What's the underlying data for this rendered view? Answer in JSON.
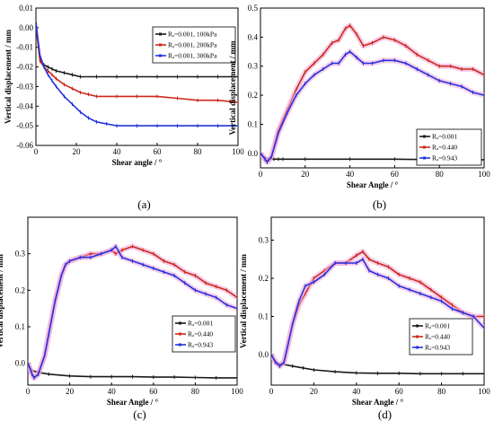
{
  "colors": {
    "black": "#1a1a1a",
    "red": "#cc2a1a",
    "blue": "#2233dd",
    "pink_band": "#f2a6d8"
  },
  "chart_data": [
    {
      "panel": "(a)",
      "type": "line",
      "xlabel": "Shear angle / °",
      "ylabel": "Vertical displacement / mm",
      "xlim": [
        0,
        100
      ],
      "ylim": [
        -0.06,
        0.01
      ],
      "xticks": [
        "0",
        "20",
        "40",
        "60",
        "80",
        "100"
      ],
      "yticks": [
        "0.01",
        "0.00",
        "-0.01",
        "-0.02",
        "-0.03",
        "-0.04",
        "-0.05",
        "-0.06"
      ],
      "legend": "top-right",
      "series": [
        {
          "name": "Rₐ=0.001, 100kPa",
          "color": "black",
          "x": [
            0,
            2,
            4,
            6,
            8,
            10,
            14,
            18,
            22,
            30,
            40,
            50,
            60,
            70,
            80,
            90,
            100
          ],
          "y": [
            0.003,
            -0.016,
            -0.019,
            -0.02,
            -0.021,
            -0.022,
            -0.023,
            -0.024,
            -0.025,
            -0.025,
            -0.025,
            -0.025,
            -0.025,
            -0.025,
            -0.025,
            -0.025,
            -0.025
          ]
        },
        {
          "name": "Rₐ=0.001, 200kPa",
          "color": "red",
          "x": [
            0,
            2,
            4,
            6,
            8,
            10,
            14,
            18,
            22,
            26,
            30,
            40,
            50,
            60,
            70,
            80,
            90,
            100
          ],
          "y": [
            0.001,
            -0.017,
            -0.02,
            -0.022,
            -0.024,
            -0.026,
            -0.029,
            -0.031,
            -0.033,
            -0.034,
            -0.035,
            -0.035,
            -0.035,
            -0.035,
            -0.036,
            -0.037,
            -0.037,
            -0.038
          ]
        },
        {
          "name": "Rₐ=0.001, 300kPa",
          "color": "blue",
          "x": [
            0,
            2,
            4,
            6,
            8,
            10,
            14,
            18,
            22,
            26,
            30,
            35,
            40,
            50,
            60,
            70,
            80,
            90,
            100
          ],
          "y": [
            0.002,
            -0.014,
            -0.02,
            -0.024,
            -0.027,
            -0.03,
            -0.035,
            -0.039,
            -0.043,
            -0.046,
            -0.048,
            -0.049,
            -0.05,
            -0.05,
            -0.05,
            -0.05,
            -0.05,
            -0.05,
            -0.05
          ]
        }
      ]
    },
    {
      "panel": "(b)",
      "type": "line",
      "xlabel": "Shear Angle / °",
      "ylabel": "Vertical displacement / mm",
      "xlim": [
        0,
        100
      ],
      "ylim": [
        -0.05,
        0.5
      ],
      "xticks": [
        "0",
        "20",
        "40",
        "60",
        "80",
        "100"
      ],
      "yticks": [
        "0.0",
        "0.1",
        "0.2",
        "0.3",
        "0.4",
        "0.5"
      ],
      "legend": "bottom-right",
      "series": [
        {
          "name": "Rₐ=0.001",
          "color": "black",
          "x": [
            0,
            2,
            4,
            6,
            8,
            10,
            20,
            40,
            60,
            80,
            100
          ],
          "y": [
            0,
            -0.015,
            -0.02,
            -0.02,
            -0.02,
            -0.02,
            -0.02,
            -0.02,
            -0.02,
            -0.022,
            -0.022
          ]
        },
        {
          "name": "Rₐ=0.440",
          "color": "red",
          "x": [
            0,
            2,
            3,
            5,
            8,
            12,
            16,
            20,
            24,
            28,
            32,
            35,
            38,
            40,
            43,
            46,
            50,
            55,
            60,
            65,
            70,
            75,
            80,
            85,
            90,
            95,
            100
          ],
          "y": [
            0,
            -0.02,
            -0.03,
            -0.01,
            0.08,
            0.15,
            0.22,
            0.28,
            0.31,
            0.34,
            0.38,
            0.39,
            0.43,
            0.44,
            0.41,
            0.37,
            0.38,
            0.4,
            0.39,
            0.37,
            0.34,
            0.32,
            0.3,
            0.3,
            0.29,
            0.29,
            0.27
          ]
        },
        {
          "name": "Rₐ=0.943",
          "color": "blue",
          "x": [
            0,
            2,
            3,
            5,
            8,
            12,
            16,
            20,
            24,
            28,
            32,
            35,
            38,
            40,
            43,
            46,
            50,
            55,
            60,
            65,
            70,
            75,
            80,
            85,
            90,
            95,
            100
          ],
          "y": [
            0,
            -0.02,
            -0.03,
            -0.01,
            0.07,
            0.14,
            0.2,
            0.24,
            0.27,
            0.29,
            0.31,
            0.31,
            0.34,
            0.35,
            0.33,
            0.31,
            0.31,
            0.32,
            0.32,
            0.31,
            0.29,
            0.27,
            0.25,
            0.24,
            0.23,
            0.21,
            0.2
          ]
        }
      ]
    },
    {
      "panel": "(c)",
      "type": "line",
      "xlabel": "Shear Angle / °",
      "ylabel": "Vertical displacement / mm",
      "xlim": [
        0,
        100
      ],
      "ylim": [
        -0.06,
        0.4
      ],
      "xticks": [
        "0",
        "20",
        "40",
        "60",
        "80",
        "100"
      ],
      "yticks": [
        "0.0",
        "0.1",
        "0.2",
        "0.3"
      ],
      "legend": "bottom-right",
      "series": [
        {
          "name": "Rₐ=0.001",
          "color": "black",
          "x": [
            0,
            2,
            5,
            10,
            20,
            30,
            40,
            50,
            60,
            70,
            80,
            90,
            100
          ],
          "y": [
            0,
            -0.02,
            -0.025,
            -0.03,
            -0.035,
            -0.037,
            -0.037,
            -0.037,
            -0.038,
            -0.038,
            -0.039,
            -0.04,
            -0.04
          ]
        },
        {
          "name": "Rₐ=0.440",
          "color": "red",
          "x": [
            0,
            2,
            3,
            5,
            8,
            10,
            13,
            16,
            18,
            20,
            25,
            30,
            35,
            40,
            42,
            45,
            50,
            55,
            60,
            65,
            70,
            75,
            80,
            85,
            90,
            95,
            100
          ],
          "y": [
            0,
            -0.03,
            -0.04,
            -0.03,
            0.02,
            0.08,
            0.17,
            0.24,
            0.27,
            0.28,
            0.29,
            0.3,
            0.3,
            0.31,
            0.3,
            0.31,
            0.32,
            0.31,
            0.3,
            0.28,
            0.27,
            0.25,
            0.24,
            0.22,
            0.21,
            0.2,
            0.18
          ]
        },
        {
          "name": "Rₐ=0.943",
          "color": "blue",
          "x": [
            0,
            2,
            3,
            5,
            8,
            10,
            13,
            16,
            18,
            20,
            25,
            30,
            35,
            40,
            42,
            45,
            50,
            55,
            60,
            65,
            70,
            75,
            80,
            85,
            90,
            95,
            100
          ],
          "y": [
            0,
            -0.03,
            -0.04,
            -0.03,
            0.02,
            0.08,
            0.17,
            0.24,
            0.27,
            0.28,
            0.29,
            0.29,
            0.3,
            0.31,
            0.32,
            0.29,
            0.28,
            0.27,
            0.26,
            0.25,
            0.24,
            0.22,
            0.2,
            0.19,
            0.18,
            0.16,
            0.15
          ]
        }
      ]
    },
    {
      "panel": "(d)",
      "type": "line",
      "xlabel": "Shear Angle / °",
      "ylabel": "Vertical displacement / mm",
      "xlim": [
        0,
        100
      ],
      "ylim": [
        -0.08,
        0.36
      ],
      "xticks": [
        "0",
        "20",
        "40",
        "60",
        "80",
        "100"
      ],
      "yticks": [
        "0.0",
        "0.1",
        "0.2",
        "0.3"
      ],
      "legend": "bottom-right",
      "series": [
        {
          "name": "Rₐ=0.001",
          "color": "black",
          "x": [
            0,
            2,
            5,
            10,
            15,
            20,
            30,
            40,
            50,
            60,
            70,
            80,
            90,
            100
          ],
          "y": [
            0,
            -0.02,
            -0.025,
            -0.03,
            -0.035,
            -0.04,
            -0.045,
            -0.048,
            -0.049,
            -0.049,
            -0.05,
            -0.05,
            -0.05,
            -0.05
          ]
        },
        {
          "name": "Rₐ=0.440",
          "color": "red",
          "x": [
            0,
            2,
            4,
            6,
            8,
            10,
            13,
            16,
            20,
            25,
            30,
            35,
            40,
            43,
            46,
            50,
            55,
            60,
            65,
            70,
            75,
            80,
            85,
            90,
            95,
            100
          ],
          "y": [
            0,
            -0.02,
            -0.03,
            -0.02,
            0.03,
            0.08,
            0.13,
            0.16,
            0.2,
            0.22,
            0.24,
            0.24,
            0.26,
            0.27,
            0.25,
            0.24,
            0.23,
            0.21,
            0.2,
            0.19,
            0.17,
            0.15,
            0.13,
            0.11,
            0.1,
            0.1
          ]
        },
        {
          "name": "Rₐ=0.943",
          "color": "blue",
          "x": [
            0,
            2,
            4,
            6,
            8,
            10,
            13,
            16,
            20,
            25,
            30,
            35,
            40,
            43,
            46,
            50,
            55,
            60,
            65,
            70,
            75,
            80,
            85,
            90,
            95,
            100
          ],
          "y": [
            0,
            -0.02,
            -0.03,
            -0.02,
            0.03,
            0.08,
            0.14,
            0.18,
            0.19,
            0.21,
            0.24,
            0.24,
            0.24,
            0.25,
            0.22,
            0.21,
            0.2,
            0.18,
            0.17,
            0.16,
            0.15,
            0.14,
            0.12,
            0.11,
            0.1,
            0.07
          ]
        }
      ]
    }
  ]
}
